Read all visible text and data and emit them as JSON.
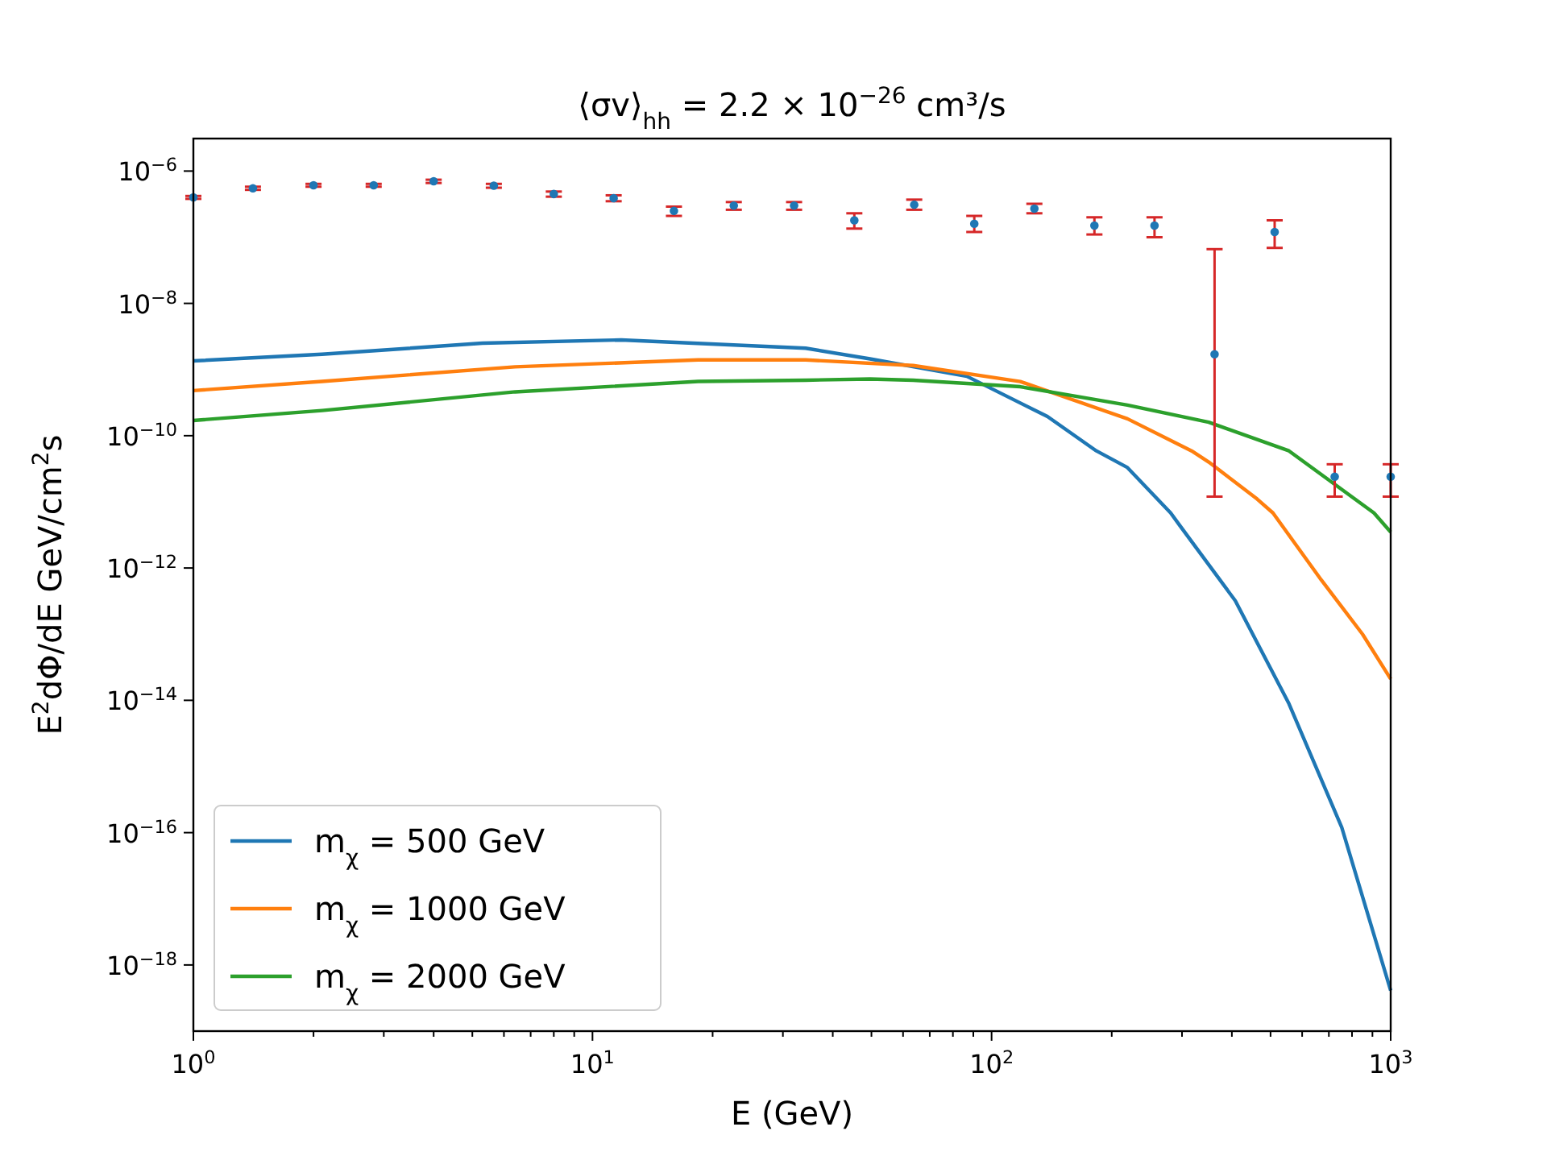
{
  "chart_data": {
    "type": "line",
    "title": "⟨σv⟩$_{hh}$ = 2.2 × 10$^{−26}$ cm³/s",
    "xlabel": "E (GeV)",
    "ylabel": "E$^{2}$dΦ/dE GeV/cm$^{2}$s",
    "log": "xy",
    "xlim": [
      1,
      1000
    ],
    "ylim": [
      1e-19,
      3.1e-06
    ],
    "xticks": [
      {
        "value": 1,
        "label": "10$^{0}$"
      },
      {
        "value": 2,
        "label": null
      },
      {
        "value": 3,
        "label": null
      },
      {
        "value": 4,
        "label": null
      },
      {
        "value": 5,
        "label": null
      },
      {
        "value": 6,
        "label": null
      },
      {
        "value": 7,
        "label": null
      },
      {
        "value": 8,
        "label": null
      },
      {
        "value": 9,
        "label": null
      },
      {
        "value": 10,
        "label": "10$^{1}$"
      },
      {
        "value": 20,
        "label": null
      },
      {
        "value": 30,
        "label": null
      },
      {
        "value": 40,
        "label": null
      },
      {
        "value": 50,
        "label": null
      },
      {
        "value": 60,
        "label": null
      },
      {
        "value": 70,
        "label": null
      },
      {
        "value": 80,
        "label": null
      },
      {
        "value": 90,
        "label": null
      },
      {
        "value": 100,
        "label": "10$^{2}$"
      },
      {
        "value": 200,
        "label": null
      },
      {
        "value": 300,
        "label": null
      },
      {
        "value": 400,
        "label": null
      },
      {
        "value": 500,
        "label": null
      },
      {
        "value": 600,
        "label": null
      },
      {
        "value": 700,
        "label": null
      },
      {
        "value": 800,
        "label": null
      },
      {
        "value": 900,
        "label": null
      },
      {
        "value": 1000,
        "label": "10$^{3}$"
      }
    ],
    "yticks": [
      {
        "value": 1e-18,
        "label": "10$^{−18}$"
      },
      {
        "value": 1e-16,
        "label": "10$^{−16}$"
      },
      {
        "value": 1e-14,
        "label": "10$^{−14}$"
      },
      {
        "value": 1e-12,
        "label": "10$^{−12}$"
      },
      {
        "value": 1e-10,
        "label": "10$^{−10}$"
      },
      {
        "value": 1e-08,
        "label": "10$^{−8}$"
      },
      {
        "value": 1e-06,
        "label": "10$^{−6}$"
      }
    ],
    "legend": "bottom left",
    "grid": false,
    "series": [
      {
        "name": "m$_{χ}$ = 500 GeV",
        "color": "#1f77b4",
        "marker": "none",
        "x": [
          1,
          2.1,
          5.3,
          11.8,
          34.2,
          49.6,
          86.7,
          138,
          183,
          219,
          281,
          297,
          408,
          556,
          754,
          1000
        ],
        "values": [
          1.35e-09,
          1.7e-09,
          2.5e-09,
          2.8e-09,
          2.1e-09,
          1.45e-09,
          7.9e-10,
          1.95e-10,
          5.9e-11,
          3.3e-11,
          6.8e-12,
          4.3e-12,
          3.2e-13,
          8.9e-15,
          1.2e-16,
          4.1e-19
        ]
      },
      {
        "name": "m$_{χ}$ = 1000 GeV",
        "color": "#ff7f0e",
        "marker": "none",
        "x": [
          1,
          2.1,
          6.4,
          18.4,
          34.2,
          63.6,
          118,
          219,
          317,
          350,
          463,
          507,
          670,
          850,
          1000
        ],
        "values": [
          4.8e-10,
          6.6e-10,
          1.1e-09,
          1.4e-09,
          1.4e-09,
          1.15e-09,
          6.6e-10,
          1.8e-10,
          5.9e-11,
          4e-11,
          1.1e-11,
          6.8e-12,
          6.6e-13,
          1e-13,
          2.1e-14
        ]
      },
      {
        "name": "m$_{χ}$ = 2000 GeV",
        "color": "#2ca02c",
        "marker": "none",
        "x": [
          1,
          2.1,
          6.4,
          18.4,
          34.2,
          49.6,
          63.6,
          118,
          219,
          350,
          556,
          908,
          1000
        ],
        "values": [
          1.7e-10,
          2.4e-10,
          4.6e-10,
          6.6e-10,
          6.9e-10,
          7.2e-10,
          6.9e-10,
          5.5e-10,
          2.9e-10,
          1.6e-10,
          5.9e-11,
          6.8e-12,
          3.5e-12
        ]
      },
      {
        "type": "scatter",
        "color": "#1f77b4",
        "marker": "circle",
        "x": [
          1,
          1.41,
          2,
          2.83,
          4,
          5.66,
          8,
          11.3,
          16,
          22.6,
          32,
          45.3,
          64,
          90.5,
          128,
          181,
          256,
          362,
          512,
          724,
          1000
        ],
        "values": [
          4e-07,
          5.5e-07,
          6.1e-07,
          6.1e-07,
          7e-07,
          6e-07,
          4.5e-07,
          3.9e-07,
          2.5e-07,
          3e-07,
          3e-07,
          1.8e-07,
          3.1e-07,
          1.6e-07,
          2.7e-07,
          1.5e-07,
          1.5e-07,
          1.7e-09,
          1.2e-07,
          2.4e-11,
          2.4e-11
        ],
        "errors": [
          [
            3.8e-07,
            4.2e-07
          ],
          [
            5.2e-07,
            5.8e-07
          ],
          [
            5.8e-07,
            6.4e-07
          ],
          [
            5.8e-07,
            6.4e-07
          ],
          [
            6.6e-07,
            7.4e-07
          ],
          [
            5.6e-07,
            6.4e-07
          ],
          [
            4.1e-07,
            4.9e-07
          ],
          [
            3.5e-07,
            4.3e-07
          ],
          [
            2.1e-07,
            2.9e-07
          ],
          [
            2.6e-07,
            3.4e-07
          ],
          [
            2.6e-07,
            3.4e-07
          ],
          [
            1.35e-07,
            2.3e-07
          ],
          [
            2.6e-07,
            3.7e-07
          ],
          [
            1.2e-07,
            2.1e-07
          ],
          [
            2.3e-07,
            3.2e-07
          ],
          [
            1.1e-07,
            2e-07
          ],
          [
            1e-07,
            2e-07
          ],
          [
            1.2e-11,
            6.6e-08
          ],
          [
            6.9e-08,
            1.8e-07
          ],
          [
            1.2e-11,
            3.7e-11
          ],
          [
            1.2e-11,
            3.7e-11
          ]
        ]
      }
    ]
  }
}
